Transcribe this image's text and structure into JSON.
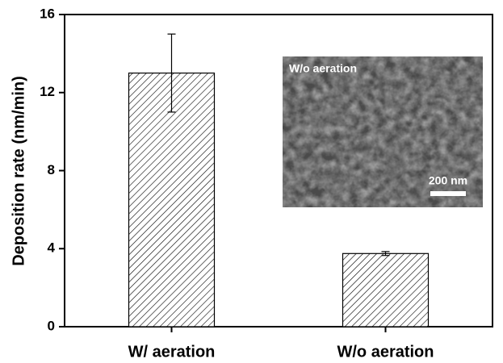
{
  "chart_data": {
    "type": "bar",
    "ylabel": "Deposition rate (nm/min)",
    "categories": [
      "W/ aeration",
      "W/o aeration"
    ],
    "values": [
      13,
      3.75
    ],
    "errors": [
      2,
      0.1
    ],
    "color": "#ffffff",
    "hatch": true,
    "ylim": [
      0,
      16
    ],
    "yticks": [
      0,
      4,
      8,
      12,
      16
    ],
    "annotations": [
      "W/o aeration",
      "200 nm"
    ]
  }
}
